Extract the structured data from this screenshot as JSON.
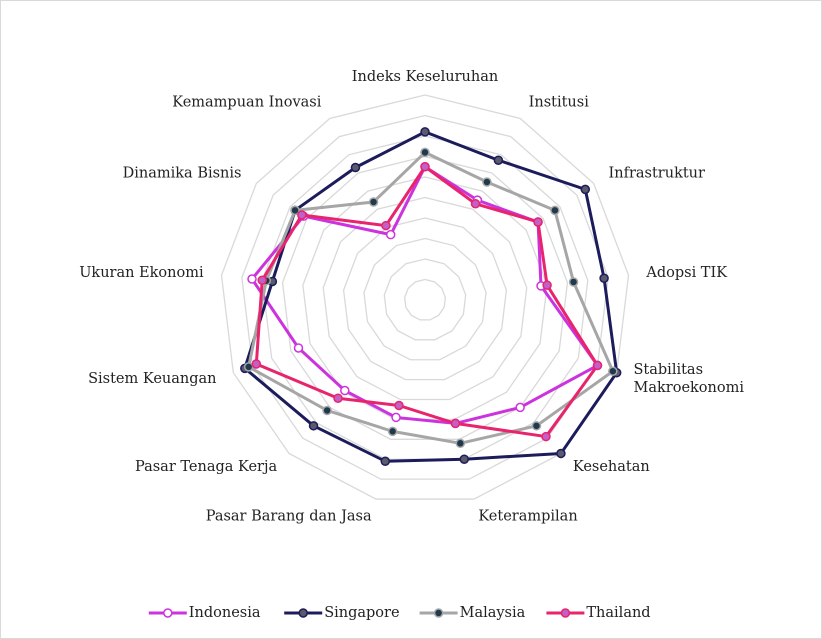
{
  "chart_data": {
    "type": "radar",
    "categories": [
      "Indeks Keseluruhan",
      "Institusi",
      "Infrastruktur",
      "Adopsi TIK",
      "Stabilitas\nMakroekonomi",
      "Kesehatan",
      "Keterampilan",
      "Pasar Barang dan Jasa",
      "Pasar Tenaga Kerja",
      "Sistem Keuangan",
      "Ukuran Ekonomi",
      "Dinamika Bisnis",
      "Kemampuan Inovasi"
    ],
    "series": [
      {
        "name": "Indonesia",
        "color": "#cc33dd",
        "marker_fill": "#ffffff",
        "values": [
          65,
          55,
          67,
          57,
          90,
          70,
          62,
          59,
          59,
          66,
          85,
          72,
          36
        ]
      },
      {
        "name": "Singapore",
        "color": "#1c1c5c",
        "marker_fill": "#5a5a6a",
        "values": [
          82,
          77,
          95,
          88,
          100,
          100,
          80,
          81,
          82,
          94,
          75,
          77,
          73
        ]
      },
      {
        "name": "Malaysia",
        "color": "#a6a6a6",
        "marker_fill": "#1f3a4d",
        "values": [
          72,
          65,
          77,
          73,
          98,
          82,
          72,
          66,
          72,
          92,
          78,
          77,
          54
        ]
      },
      {
        "name": "Thailand",
        "color": "#e8246c",
        "marker_fill": "#c060c8",
        "values": [
          65,
          53,
          67,
          60,
          90,
          89,
          62,
          53,
          64,
          88,
          80,
          73,
          41
        ]
      }
    ],
    "rlim": [
      0,
      100
    ],
    "rticks": [
      10,
      20,
      30,
      40,
      50,
      60,
      70,
      80,
      90,
      100
    ],
    "grid": true,
    "legend": "bottom"
  }
}
